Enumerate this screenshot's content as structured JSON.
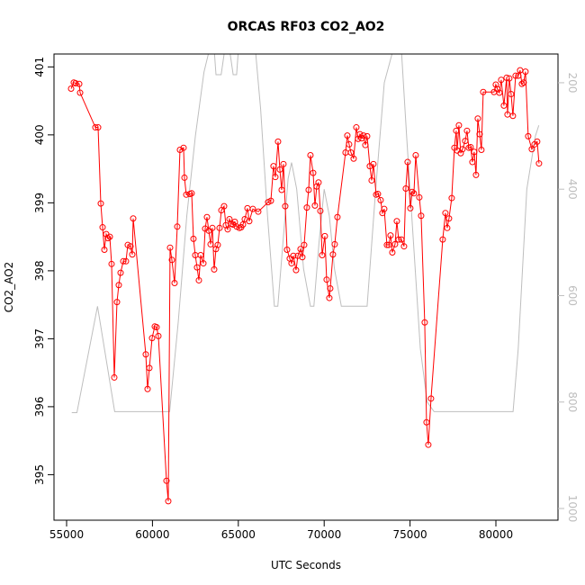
{
  "chart_data": {
    "type": "line",
    "title": "ORCAS RF03 CO2_AO2",
    "x_label": "UTC Seconds",
    "y_label": "CO2_AO2",
    "xlim": [
      54266,
      83616
    ],
    "ylim": [
      394.33,
      401.19
    ],
    "y2lim": [
      1022,
      146
    ],
    "xticks": [
      55000,
      60000,
      65000,
      70000,
      75000,
      80000
    ],
    "yticks": [
      395,
      396,
      397,
      398,
      399,
      400,
      401
    ],
    "y2ticks": [
      200,
      400,
      600,
      800,
      1000
    ],
    "series": [
      {
        "color": "#bebebe",
        "axis": "y2",
        "markers": false,
        "x": [
          55300,
          55600,
          56800,
          57800,
          61000,
          61500,
          62000,
          62500,
          63000,
          63300,
          63600,
          63700,
          64000,
          64200,
          64500,
          64700,
          64900,
          65000,
          66000,
          66300,
          66700,
          67100,
          67300,
          67600,
          67900,
          68100,
          68400,
          68800,
          69200,
          69400,
          69700,
          70000,
          70300,
          70600,
          71000,
          72500,
          73000,
          73500,
          74000,
          74500,
          74800,
          75200,
          75600,
          76000,
          76400,
          81000,
          81300,
          81800,
          82300,
          82500
        ],
        "values": [
          820,
          820,
          620,
          818,
          818,
          650,
          450,
          300,
          180,
          140,
          140,
          185,
          185,
          140,
          140,
          185,
          185,
          140,
          140,
          250,
          450,
          620,
          620,
          500,
          380,
          350,
          400,
          550,
          620,
          620,
          500,
          400,
          450,
          550,
          620,
          620,
          400,
          200,
          140,
          140,
          300,
          500,
          700,
          800,
          818,
          818,
          700,
          400,
          300,
          280
        ]
      },
      {
        "color": "#ff0000",
        "markers": true,
        "x": [
          55262,
          55419,
          55524,
          55734,
          55786,
          56677,
          56834,
          56991,
          57096,
          57201,
          57306,
          57410,
          57515,
          57620,
          57777,
          57934,
          58039,
          58144,
          58301,
          58458,
          58563,
          58720,
          58825,
          58878,
          59611,
          59716,
          59821,
          59978,
          60135,
          60240,
          60345,
          60816,
          60921,
          61026,
          61131,
          61288,
          61445,
          61602,
          61812,
          61864,
          61969,
          62179,
          62284,
          62388,
          62493,
          62598,
          62703,
          62808,
          62965,
          63070,
          63174,
          63279,
          63384,
          63489,
          63594,
          63698,
          63803,
          63908,
          64013,
          64170,
          64275,
          64380,
          64484,
          64589,
          64694,
          64799,
          64904,
          65061,
          65166,
          65270,
          65375,
          65532,
          65637,
          65847,
          66161,
          66738,
          66895,
          67050,
          67157,
          67314,
          67419,
          67524,
          67629,
          67733,
          67838,
          67995,
          68100,
          68205,
          68362,
          68467,
          68624,
          68729,
          68834,
          68991,
          69096,
          69200,
          69358,
          69462,
          69567,
          69672,
          69777,
          69882,
          70039,
          70144,
          70301,
          70353,
          70510,
          70615,
          70772,
          71244,
          71349,
          71454,
          71558,
          71716,
          71873,
          71978,
          72082,
          72187,
          72292,
          72397,
          72502,
          72659,
          72764,
          72868,
          73026,
          73130,
          73288,
          73392,
          73497,
          73654,
          73759,
          73864,
          73969,
          74126,
          74231,
          74336,
          74493,
          74650,
          74754,
          74859,
          75017,
          75122,
          75226,
          75331,
          75541,
          75646,
          75855,
          75960,
          76065,
          76222,
          76903,
          77060,
          77165,
          77270,
          77427,
          77584,
          77689,
          77742,
          77846,
          77951,
          78056,
          78213,
          78318,
          78423,
          78528,
          78632,
          78737,
          78842,
          78947,
          79052,
          79156,
          79261,
          79890,
          79995,
          80100,
          80204,
          80309,
          80466,
          80624,
          80676,
          80781,
          80886,
          80990,
          81148,
          81305,
          81410,
          81514,
          81619,
          81724,
          81881,
          82091,
          82248,
          82405,
          82510
        ],
        "values": [
          400.68,
          400.77,
          400.76,
          400.75,
          400.62,
          400.11,
          400.11,
          398.99,
          398.64,
          398.31,
          398.54,
          398.48,
          398.5,
          398.1,
          396.43,
          397.54,
          397.79,
          397.97,
          398.14,
          398.14,
          398.38,
          398.36,
          398.24,
          398.77,
          396.77,
          396.26,
          396.57,
          397.01,
          397.18,
          397.17,
          397.04,
          394.91,
          394.61,
          398.34,
          398.16,
          397.82,
          398.65,
          399.78,
          399.81,
          399.37,
          399.12,
          399.13,
          399.14,
          398.47,
          398.23,
          398.05,
          397.86,
          398.23,
          398.11,
          398.62,
          398.79,
          398.59,
          398.39,
          398.63,
          398.02,
          398.32,
          398.38,
          398.63,
          398.89,
          398.95,
          398.67,
          398.61,
          398.76,
          398.69,
          398.68,
          398.72,
          398.65,
          398.63,
          398.64,
          398.68,
          398.76,
          398.92,
          398.73,
          398.91,
          398.87,
          399.01,
          399.03,
          399.54,
          399.38,
          399.9,
          399.49,
          399.19,
          399.57,
          398.95,
          398.31,
          398.18,
          398.11,
          398.22,
          398.01,
          398.22,
          398.32,
          398.2,
          398.38,
          398.93,
          399.19,
          399.7,
          399.44,
          398.96,
          399.24,
          399.3,
          398.88,
          398.23,
          398.51,
          397.87,
          397.6,
          397.74,
          398.24,
          398.39,
          398.79,
          399.74,
          399.99,
          399.86,
          399.74,
          399.65,
          400.11,
          399.94,
          400.01,
          399.95,
          399.99,
          399.85,
          399.98,
          399.54,
          399.33,
          399.57,
          399.12,
          399.13,
          399.04,
          398.85,
          398.91,
          398.38,
          398.38,
          398.52,
          398.27,
          398.39,
          398.73,
          398.46,
          398.46,
          398.36,
          399.21,
          399.6,
          398.92,
          399.16,
          399.14,
          399.7,
          399.08,
          398.81,
          397.24,
          395.77,
          395.44,
          396.12,
          398.46,
          398.85,
          398.63,
          398.77,
          399.07,
          399.81,
          400.06,
          399.77,
          400.14,
          399.73,
          399.79,
          399.91,
          400.06,
          399.81,
          399.82,
          399.6,
          399.75,
          399.41,
          400.24,
          400.01,
          399.78,
          400.63,
          400.63,
          400.74,
          400.67,
          400.62,
          400.81,
          400.43,
          400.84,
          400.3,
          400.83,
          400.6,
          400.28,
          400.87,
          400.87,
          400.95,
          400.75,
          400.77,
          400.93,
          399.98,
          399.79,
          399.86,
          399.9,
          399.58
        ]
      }
    ]
  }
}
